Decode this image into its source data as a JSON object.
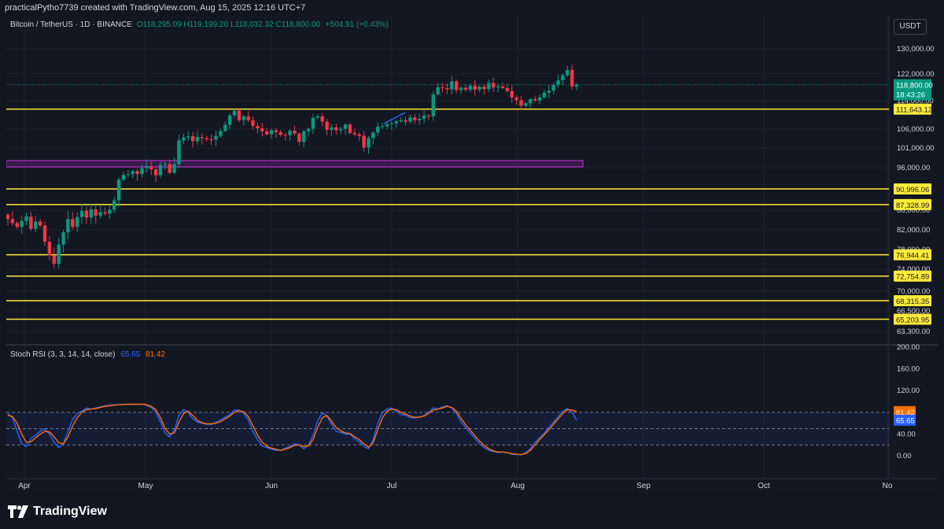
{
  "header": {
    "text": "practicalPytho7739 created with TradingView.com, Aug 15, 2025 12:16 UTC+7"
  },
  "legend": {
    "symbol": "Bitcoin / TetherUS · 1D · BINANCE",
    "ohlc": "O118,295.09  H119,199.20  L118,032.32  C118,800.00",
    "change": "+504.91 (+0.43%)"
  },
  "currency": "USDT",
  "price_badge": {
    "price": "118,800.00",
    "countdown": "18:43:26"
  },
  "rsi_legend": {
    "title": "Stoch RSI (3, 3, 14, 14, close)",
    "k": "65.65",
    "d": "81.42"
  },
  "footer": {
    "brand": "TradingView"
  },
  "colors": {
    "background": "#131722",
    "up": "#089981",
    "down": "#f23645",
    "level": "#ffeb3b",
    "zone": "#9c27b0",
    "k_line": "#2962ff",
    "d_line": "#ff6d00",
    "grid": "#1e222d",
    "text": "#d1d4dc"
  },
  "chart_data": [
    {
      "type": "candlestick",
      "x_ticks": [
        "Apr",
        "May",
        "Jun",
        "Jul",
        "Aug",
        "Sep",
        "Oct",
        "No"
      ],
      "y_ticks": [
        "130,000.00",
        "122,000.00",
        "114,000.00",
        "106,000.00",
        "101,000.00",
        "96,000.00",
        "86,000.00",
        "82,000.00",
        "78,000.00",
        "74,000.00",
        "70,000.00",
        "66,500.00",
        "63,300.00"
      ],
      "levels": [
        "111,643.12",
        "90,996.06",
        "87,328.99",
        "76,944.41",
        "72,754.89",
        "68,315.35",
        "65,203.95"
      ],
      "level_values": [
        111643.12,
        90996.06,
        87328.99,
        76944.41,
        72754.89,
        68315.35,
        65203.95
      ],
      "zone": {
        "from": 96200,
        "to": 97800
      },
      "last_price": 118800,
      "closes": [
        84200,
        83400,
        82600,
        83800,
        84700,
        82200,
        83700,
        82900,
        79600,
        76800,
        75100,
        79000,
        81500,
        84200,
        82600,
        84600,
        85900,
        84500,
        86200,
        84900,
        85600,
        85300,
        86100,
        88300,
        93200,
        94300,
        94500,
        95200,
        94500,
        95900,
        96400,
        95600,
        94200,
        96700,
        96900,
        94800,
        96900,
        103000,
        103800,
        104100,
        102800,
        103900,
        103600,
        103300,
        103200,
        104200,
        105500,
        107200,
        109900,
        111200,
        108500,
        109600,
        108500,
        106900,
        106200,
        105400,
        104600,
        105700,
        105200,
        104500,
        104400,
        105600,
        104800,
        102600,
        105400,
        106100,
        109200,
        109600,
        108100,
        105800,
        106500,
        105700,
        106100,
        107300,
        105000,
        104600,
        104200,
        101100,
        103600,
        105100,
        106700,
        106800,
        107400,
        107600,
        108200,
        108500,
        108100,
        109300,
        108500,
        108900,
        109800,
        109600,
        115900,
        118000,
        117800,
        117400,
        119800,
        117200,
        117900,
        117300,
        118500,
        117300,
        118200,
        117500,
        119300,
        118000,
        118300,
        117800,
        116900,
        115000,
        114200,
        112600,
        113300,
        114500,
        114100,
        115000,
        116400,
        117000,
        118700,
        120100,
        121600,
        123300,
        118300,
        118800
      ]
    },
    {
      "type": "line",
      "title": "Stoch RSI (3, 3, 14, 14, close)",
      "y_ticks": [
        "200.00",
        "160.00",
        "120.00",
        "80.00",
        "40.00",
        "0.00"
      ],
      "bands": [
        80,
        50,
        20
      ],
      "series": [
        {
          "name": "K",
          "values": [
            78,
            70,
            45,
            22,
            17,
            32,
            38,
            45,
            50,
            40,
            25,
            15,
            22,
            45,
            67,
            78,
            82,
            88,
            86,
            88,
            90,
            92,
            93,
            94,
            94,
            95,
            95,
            94,
            95,
            95,
            93,
            89,
            80,
            62,
            42,
            35,
            48,
            75,
            85,
            80,
            68,
            62,
            60,
            58,
            58,
            62,
            66,
            71,
            76,
            84,
            84,
            78,
            66,
            45,
            30,
            18,
            15,
            12,
            10,
            10,
            14,
            17,
            22,
            20,
            13,
            20,
            38,
            64,
            79,
            73,
            58,
            45,
            43,
            40,
            40,
            31,
            26,
            17,
            13,
            30,
            60,
            80,
            86,
            88,
            82,
            76,
            75,
            70,
            70,
            71,
            74,
            80,
            88,
            86,
            90,
            92,
            88,
            78,
            62,
            52,
            42,
            32,
            22,
            15,
            10,
            8,
            6,
            7,
            6,
            3,
            2,
            2,
            6,
            13,
            25,
            33,
            42,
            52,
            62,
            72,
            82,
            87,
            80,
            65.65
          ]
        },
        {
          "name": "D",
          "values": [
            75,
            72,
            60,
            40,
            25,
            26,
            33,
            40,
            45,
            44,
            35,
            24,
            22,
            35,
            55,
            70,
            80,
            85,
            86,
            87,
            89,
            91,
            92,
            93,
            94,
            94,
            95,
            95,
            95,
            95,
            94,
            91,
            85,
            70,
            50,
            40,
            42,
            62,
            78,
            82,
            74,
            65,
            61,
            59,
            59,
            60,
            63,
            68,
            73,
            80,
            83,
            81,
            72,
            55,
            38,
            25,
            18,
            14,
            12,
            10,
            12,
            15,
            19,
            20,
            17,
            18,
            30,
            52,
            70,
            74,
            64,
            52,
            46,
            42,
            41,
            35,
            30,
            22,
            16,
            24,
            48,
            70,
            82,
            86,
            85,
            80,
            77,
            73,
            71,
            71,
            73,
            78,
            84,
            86,
            88,
            91,
            89,
            82,
            69,
            57,
            47,
            37,
            27,
            19,
            13,
            9,
            7,
            7,
            6,
            4,
            3,
            2,
            4,
            10,
            20,
            30,
            39,
            48,
            58,
            68,
            78,
            85,
            84,
            81.42
          ]
        }
      ]
    }
  ]
}
